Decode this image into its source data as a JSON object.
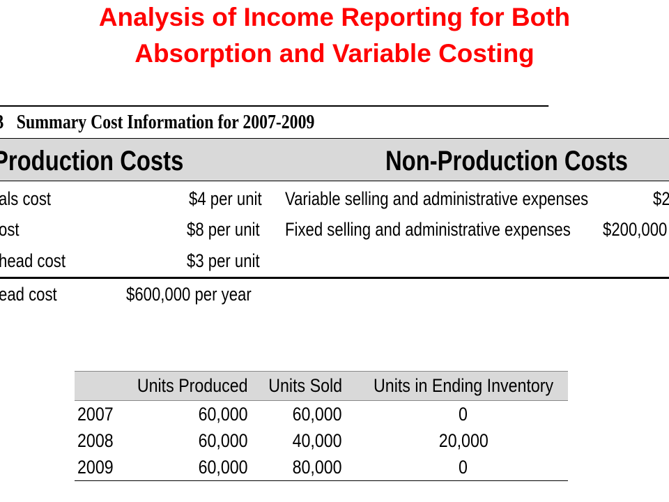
{
  "title": {
    "line1": "Analysis of Income Reporting for Both",
    "line2": "Absorption and Variable Costing"
  },
  "summary": {
    "number_fragment": "3",
    "caption": "Summary Cost Information for 2007-2009",
    "production_header": "Production Costs",
    "nonproduction_header": "Non-Production Costs",
    "production_rows": [
      {
        "label": "als cost",
        "value": "$4 per unit"
      },
      {
        "label": "ost",
        "value": "$8 per unit"
      },
      {
        "label": "head cost",
        "value": "$3 per unit"
      }
    ],
    "nonproduction_rows": [
      {
        "label": "Variable selling and administrative expenses",
        "value": "$2"
      },
      {
        "label": "Fixed selling and administrative expenses",
        "value": "$200,000"
      }
    ],
    "fixed_row": {
      "label": "ead cost",
      "value": "$600,000 per year"
    }
  },
  "units_table": {
    "headers": [
      "",
      "Units Produced",
      "Units Sold",
      "Units in Ending Inventory"
    ],
    "rows": [
      [
        "2007",
        "60,000",
        "60,000",
        "0"
      ],
      [
        "2008",
        "60,000",
        "40,000",
        "20,000"
      ],
      [
        "2009",
        "60,000",
        "80,000",
        "0"
      ]
    ]
  }
}
